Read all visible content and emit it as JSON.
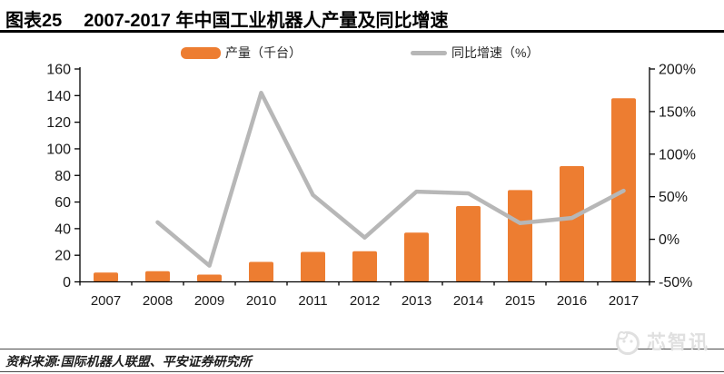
{
  "figure": {
    "label": "图表25",
    "title": "2007-2017 年中国工业机器人产量及同比增速"
  },
  "legend": {
    "production": "产量（千台）",
    "growth": "同比增速（%）"
  },
  "chart_data": {
    "type": "bar",
    "title": "2007-2017 年中国工业机器人产量及同比增速",
    "categories": [
      "2007",
      "2008",
      "2009",
      "2010",
      "2011",
      "2012",
      "2013",
      "2014",
      "2015",
      "2016",
      "2017"
    ],
    "series": [
      {
        "name": "产量（千台）",
        "type": "bar",
        "axis": "left",
        "color": "#ED7D31",
        "values": [
          7,
          8,
          5.5,
          15,
          22.5,
          23,
          37,
          57,
          69,
          87,
          138
        ]
      },
      {
        "name": "同比增速（%）",
        "type": "line",
        "axis": "right",
        "color": "#B7B7B7",
        "values": [
          null,
          20,
          -31,
          172,
          52,
          2,
          56,
          54,
          19,
          25,
          57
        ]
      }
    ],
    "xlabel": "",
    "ylabel_left": "产量（千台）",
    "ylabel_right": "同比增速（%）",
    "left_axis": {
      "min": 0,
      "max": 160,
      "step": 20,
      "suffix": ""
    },
    "right_axis": {
      "min": -50,
      "max": 200,
      "step": 50,
      "suffix": "%"
    },
    "legend_position": "top",
    "grid": false
  },
  "footer": {
    "source": "资料来源:国际机器人联盟、平安证券研究所",
    "watermark": "芯智讯"
  },
  "colors": {
    "bar": "#ED7D31",
    "line": "#B7B7B7",
    "axis": "#000000",
    "tick_label": "#1a1a1a",
    "title": "#000000",
    "watermark": "#e0e0e0"
  }
}
